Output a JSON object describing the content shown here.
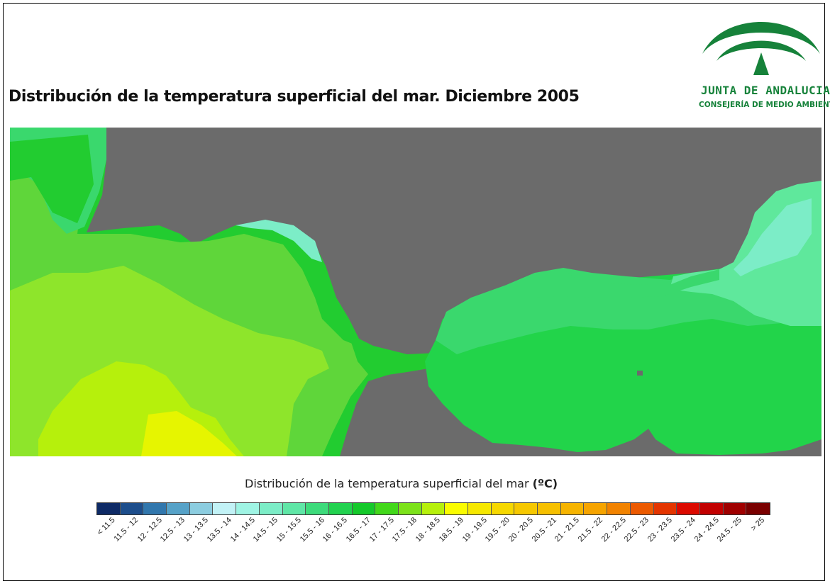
{
  "title": "Distribución de la temperatura superficial del mar. Diciembre 2005",
  "logo": {
    "name": "JUNTA DE ANDALUCIA",
    "subtitle": "CONSEJERÍA DE MEDIO AMBIENTE",
    "color": "#16823a"
  },
  "map": {
    "land_color": "#6b6b6b",
    "description_colors": {
      "atlantic_warm": "#b5f000",
      "atlantic_mid": "#8ee52b",
      "coastal": "#22cc30",
      "mediterranean": "#22d44a",
      "alboran_north": "#3ad86d",
      "med_coast": "#5fe89c"
    }
  },
  "legend": {
    "title": "Distribución de la temperatura superficial del mar",
    "unit": "(ºC)",
    "classes": [
      {
        "label": "< 11.5",
        "color": "#0e2a66"
      },
      {
        "label": "11.5 - 12",
        "color": "#1d4e8c"
      },
      {
        "label": "12 - 12.5",
        "color": "#3177ad"
      },
      {
        "label": "12.5 - 13",
        "color": "#56a2c8"
      },
      {
        "label": "13 - 13.5",
        "color": "#8ccde0"
      },
      {
        "label": "13.5 - 14",
        "color": "#c2f2f6"
      },
      {
        "label": "14 - 14.5",
        "color": "#9ff4e4"
      },
      {
        "label": "14.5 - 15",
        "color": "#7cedc7"
      },
      {
        "label": "15 - 15.5",
        "color": "#5fe6a6"
      },
      {
        "label": "15.5 - 16",
        "color": "#3ddb7b"
      },
      {
        "label": "16 - 16.5",
        "color": "#22d24f"
      },
      {
        "label": "16.5 - 17",
        "color": "#14c92a"
      },
      {
        "label": "17 - 17.5",
        "color": "#42d81a"
      },
      {
        "label": "17.5 - 18",
        "color": "#7ce21a"
      },
      {
        "label": "18 - 18.5",
        "color": "#b6f00c"
      },
      {
        "label": "18.5 - 19",
        "color": "#fafc00"
      },
      {
        "label": "19 - 19.5",
        "color": "#f6e800"
      },
      {
        "label": "19.5 - 20",
        "color": "#f6d800"
      },
      {
        "label": "20 - 20.5",
        "color": "#f6c800"
      },
      {
        "label": "20.5 - 21",
        "color": "#f6c000"
      },
      {
        "label": "21 - 21.5",
        "color": "#f6b400"
      },
      {
        "label": "21.5 - 22",
        "color": "#f6a400"
      },
      {
        "label": "22 - 22.5",
        "color": "#f28300"
      },
      {
        "label": "22.5 - 23",
        "color": "#ec5a00"
      },
      {
        "label": "23 - 23.5",
        "color": "#e43500"
      },
      {
        "label": "23.5 - 24",
        "color": "#dc0a00"
      },
      {
        "label": "24 - 24.5",
        "color": "#c20000"
      },
      {
        "label": "24.5 - 25",
        "color": "#a00000"
      },
      {
        "label": "> 25",
        "color": "#7a0000"
      }
    ]
  }
}
